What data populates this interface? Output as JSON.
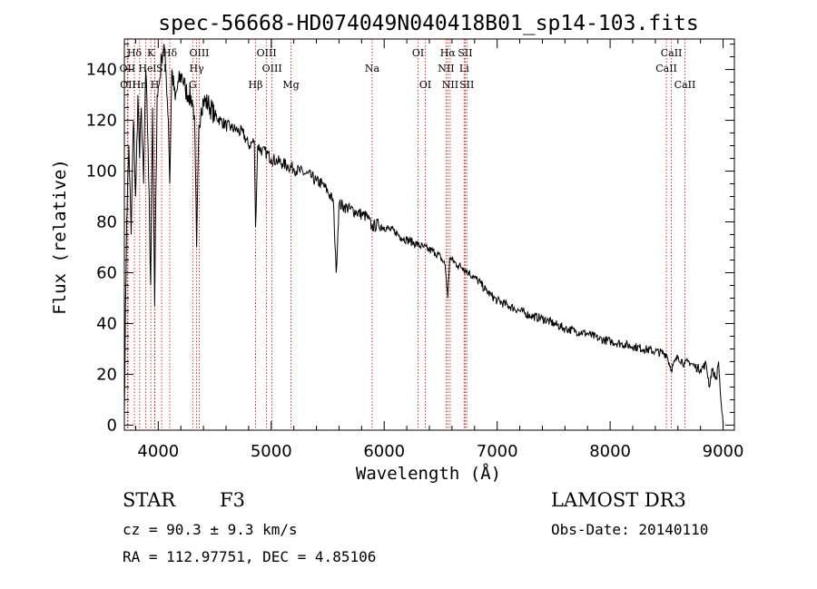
{
  "chart_data": {
    "type": "line",
    "title": "spec-56668-HD074049N040418B01_sp14-103.fits",
    "xlabel": "Wavelength (Å)",
    "ylabel": "Flux (relative)",
    "xlim": [
      3700,
      9100
    ],
    "ylim": [
      -2,
      152
    ],
    "xticks": [
      4000,
      5000,
      6000,
      7000,
      8000,
      9000
    ],
    "yticks": [
      0,
      20,
      40,
      60,
      80,
      100,
      120,
      140
    ],
    "line_color": "#000000",
    "marker_color": "#cc0000",
    "spectrum": {
      "x": [
        3700,
        3720,
        3740,
        3760,
        3780,
        3800,
        3820,
        3835,
        3850,
        3870,
        3889,
        3910,
        3933,
        3950,
        3968,
        3990,
        4010,
        4030,
        4050,
        4070,
        4090,
        4102,
        4120,
        4150,
        4180,
        4210,
        4240,
        4270,
        4300,
        4320,
        4340,
        4360,
        4380,
        4400,
        4450,
        4500,
        4550,
        4600,
        4650,
        4700,
        4750,
        4800,
        4850,
        4861,
        4880,
        4920,
        4960,
        5000,
        5050,
        5100,
        5150,
        5200,
        5250,
        5300,
        5350,
        5400,
        5450,
        5500,
        5550,
        5575,
        5600,
        5650,
        5700,
        5750,
        5800,
        5850,
        5890,
        5950,
        6000,
        6050,
        6100,
        6150,
        6200,
        6250,
        6300,
        6350,
        6400,
        6450,
        6500,
        6540,
        6563,
        6580,
        6600,
        6650,
        6700,
        6750,
        6800,
        6850,
        6900,
        6950,
        7000,
        7100,
        7200,
        7300,
        7400,
        7500,
        7600,
        7700,
        7800,
        7900,
        8000,
        8100,
        8200,
        8300,
        8400,
        8498,
        8542,
        8600,
        8662,
        8700,
        8750,
        8800,
        8850,
        8880,
        8900,
        8920,
        8940,
        8960,
        8980,
        9000
      ],
      "y": [
        5,
        80,
        110,
        75,
        120,
        90,
        130,
        105,
        125,
        95,
        140,
        110,
        55,
        125,
        47,
        130,
        135,
        145,
        150,
        138,
        120,
        95,
        140,
        128,
        135,
        138,
        132,
        130,
        128,
        122,
        70,
        118,
        125,
        128,
        126,
        122,
        120,
        118,
        117,
        116,
        115,
        110,
        112,
        78,
        110,
        108,
        107,
        105,
        104,
        103,
        102,
        101,
        100,
        99,
        98,
        96,
        95,
        92,
        88,
        60,
        87,
        86,
        85,
        84,
        83,
        82,
        78,
        79,
        78,
        77,
        76,
        74,
        73,
        72,
        71,
        70,
        69,
        68,
        66,
        63,
        50,
        66,
        65,
        63,
        62,
        60,
        58,
        56,
        53,
        51,
        49,
        47,
        45,
        43,
        42,
        40,
        38,
        37,
        36,
        34,
        33,
        32,
        31,
        30,
        29,
        28,
        22,
        27,
        24,
        25,
        23,
        22,
        24,
        15,
        22,
        20,
        18,
        25,
        10,
        0
      ]
    },
    "lines": [
      {
        "label": "Hδ",
        "x": 3789,
        "row": 0
      },
      {
        "label": "K",
        "x": 3934,
        "row": 0
      },
      {
        "label": "Hδ",
        "x": 4102,
        "row": 0
      },
      {
        "label": "OIII",
        "x": 4363,
        "row": 0
      },
      {
        "label": "OIII",
        "x": 4959,
        "row": 0
      },
      {
        "label": "OI",
        "x": 6300,
        "row": 0
      },
      {
        "label": "Hα",
        "x": 6563,
        "row": 0
      },
      {
        "label": "SII",
        "x": 6717,
        "row": 0
      },
      {
        "label": "CaII",
        "x": 8542,
        "row": 0
      },
      {
        "label": "OII",
        "x": 3727,
        "row": 1
      },
      {
        "label": "He",
        "x": 3889,
        "row": 1
      },
      {
        "label": "I",
        "x": 3968,
        "row": 1
      },
      {
        "label": "SI",
        "x": 4030,
        "row": 1
      },
      {
        "label": "Hγ",
        "x": 4340,
        "row": 1
      },
      {
        "label": "OIII",
        "x": 5007,
        "row": 1
      },
      {
        "label": "Na",
        "x": 5893,
        "row": 1
      },
      {
        "label": "NII",
        "x": 6548,
        "row": 1
      },
      {
        "label": "Li",
        "x": 6708,
        "row": 1
      },
      {
        "label": "CaII",
        "x": 8498,
        "row": 1
      },
      {
        "label": "OII",
        "x": 3732,
        "row": 2
      },
      {
        "label": "Hn",
        "x": 3835,
        "row": 2
      },
      {
        "label": "H",
        "x": 3970,
        "row": 2
      },
      {
        "label": "G",
        "x": 4305,
        "row": 2
      },
      {
        "label": "Hβ",
        "x": 4861,
        "row": 2
      },
      {
        "label": "Mg",
        "x": 5175,
        "row": 2
      },
      {
        "label": "OI",
        "x": 6364,
        "row": 2
      },
      {
        "label": "NII",
        "x": 6584,
        "row": 2
      },
      {
        "label": "SII",
        "x": 6731,
        "row": 2
      },
      {
        "label": "CaII",
        "x": 8662,
        "row": 2
      }
    ]
  },
  "info": {
    "object_class": "STAR",
    "subclass": "F3",
    "survey": "LAMOST DR3",
    "cz": "cz = 90.3 ± 9.3 km/s",
    "obs_date": "Obs-Date: 20140110",
    "coords": "RA = 112.97751, DEC =   4.85106"
  }
}
